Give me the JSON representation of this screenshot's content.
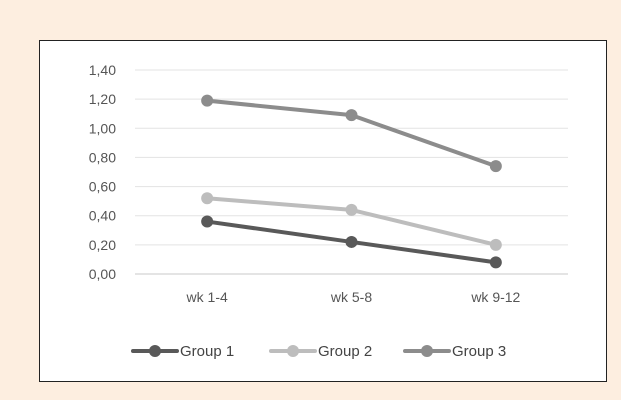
{
  "chart_data": {
    "type": "line",
    "categories": [
      "wk 1-4",
      "wk 5-8",
      "wk 9-12"
    ],
    "series": [
      {
        "name": "Group 1",
        "values": [
          0.36,
          0.22,
          0.08
        ],
        "color": "#595959"
      },
      {
        "name": "Group 2",
        "values": [
          0.52,
          0.44,
          0.2
        ],
        "color": "#bdbdbd"
      },
      {
        "name": "Group 3",
        "values": [
          1.19,
          1.09,
          0.74
        ],
        "color": "#8c8c8c"
      }
    ],
    "ylim": [
      0,
      1.4
    ],
    "yticks": [
      "0,00",
      "0,20",
      "0,40",
      "0,60",
      "0,80",
      "1,00",
      "1,20",
      "1,40"
    ],
    "grid": true,
    "legend_position": "bottom"
  }
}
